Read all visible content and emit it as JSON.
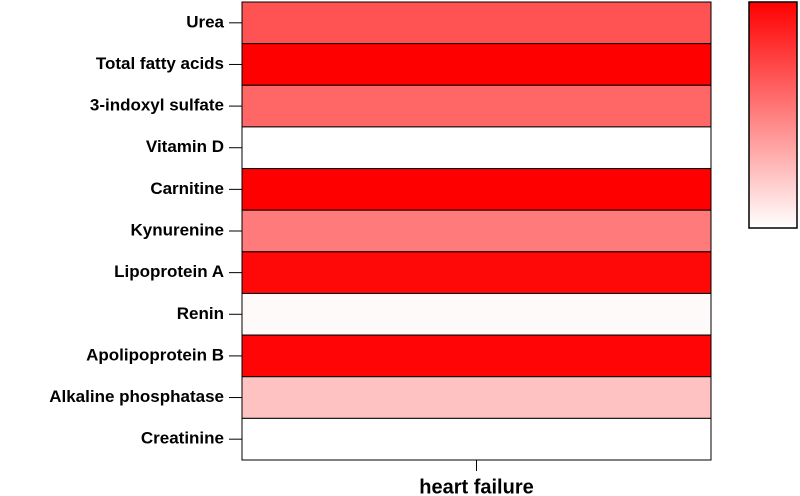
{
  "chart_data": {
    "type": "heatmap",
    "categories": [
      "Urea",
      "Total fatty acids",
      "3-indoxyl sulfate",
      "Vitamin D",
      "Carnitine",
      "Kynurenine",
      "Lipoprotein A",
      "Renin",
      "Apolipoprotein B",
      "Alkaline phosphatase",
      "Creatinine"
    ],
    "columns": [
      "heart failure"
    ],
    "values": [
      0.68,
      1.0,
      0.6,
      0.0,
      1.0,
      0.52,
      0.97,
      0.02,
      0.98,
      0.24,
      0.0
    ],
    "clim": [
      0,
      1
    ],
    "colormap": [
      "#ffffff",
      "#ff0000"
    ],
    "colorbar": true
  }
}
